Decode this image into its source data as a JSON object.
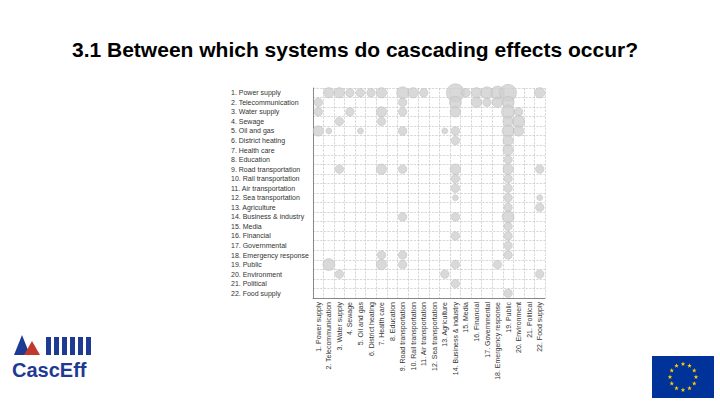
{
  "logo_text": "CascEff",
  "chart_data": {
    "type": "scatter",
    "title": "3.1  Between which systems do cascading effects occur?",
    "x_categories": [
      "1. Power supply",
      "2. Telecommunication",
      "3. Water supply",
      "4. Sewage",
      "5. Oil and gas",
      "6. District heating",
      "7. Health care",
      "8. Education",
      "9. Road transportation",
      "10. Rail transportation",
      "11. Air transportation",
      "12. Sea transportation",
      "13. Agriculture",
      "14. Business & industry",
      "15. Media",
      "16. Financial",
      "17. Governmental",
      "18. Emergency response",
      "19. Public",
      "20. Environment",
      "21. Political",
      "22. Food supply"
    ],
    "y_categories": [
      "1. Power supply",
      "2. Telecommunication",
      "3. Water supply",
      "4. Sewage",
      "5. Oil and gas",
      "6. District heating",
      "7. Health care",
      "8. Education",
      "9. Road transportation",
      "10. Rail transportation",
      "11. Air transportation",
      "12. Sea transportation",
      "13. Agriculture",
      "14. Business & industry",
      "15. Media",
      "16. Financial",
      "17. Governmental",
      "18. Emergency response",
      "19. Public",
      "20. Environment",
      "21. Political",
      "22. Food supply"
    ],
    "points": [
      {
        "y": "1. Power supply",
        "x": "2. Telecommunication",
        "size": 3
      },
      {
        "y": "1. Power supply",
        "x": "3. Water supply",
        "size": 3
      },
      {
        "y": "1. Power supply",
        "x": "4. Sewage",
        "size": 2
      },
      {
        "y": "1. Power supply",
        "x": "5. Oil and gas",
        "size": 2
      },
      {
        "y": "1. Power supply",
        "x": "6. District heating",
        "size": 2
      },
      {
        "y": "1. Power supply",
        "x": "7. Health care",
        "size": 3
      },
      {
        "y": "1. Power supply",
        "x": "9. Road transportation",
        "size": 4
      },
      {
        "y": "1. Power supply",
        "x": "10. Rail transportation",
        "size": 3
      },
      {
        "y": "1. Power supply",
        "x": "11. Air transportation",
        "size": 2
      },
      {
        "y": "1. Power supply",
        "x": "14. Business & industry",
        "size": 9
      },
      {
        "y": "1. Power supply",
        "x": "15. Media",
        "size": 2
      },
      {
        "y": "1. Power supply",
        "x": "16. Financial",
        "size": 3
      },
      {
        "y": "1. Power supply",
        "x": "17. Governmental",
        "size": 4
      },
      {
        "y": "1. Power supply",
        "x": "18. Emergency response",
        "size": 5
      },
      {
        "y": "1. Power supply",
        "x": "19. Public",
        "size": 8
      },
      {
        "y": "1. Power supply",
        "x": "22. Food supply",
        "size": 3
      },
      {
        "y": "2. Telecommunication",
        "x": "1. Power supply",
        "size": 2
      },
      {
        "y": "2. Telecommunication",
        "x": "9. Road transportation",
        "size": 2
      },
      {
        "y": "2. Telecommunication",
        "x": "14. Business & industry",
        "size": 4
      },
      {
        "y": "2. Telecommunication",
        "x": "16. Financial",
        "size": 3
      },
      {
        "y": "2. Telecommunication",
        "x": "17. Governmental",
        "size": 2
      },
      {
        "y": "2. Telecommunication",
        "x": "18. Emergency response",
        "size": 3
      },
      {
        "y": "2. Telecommunication",
        "x": "19. Public",
        "size": 4
      },
      {
        "y": "3. Water supply",
        "x": "1. Power supply",
        "size": 2
      },
      {
        "y": "3. Water supply",
        "x": "4. Sewage",
        "size": 2
      },
      {
        "y": "3. Water supply",
        "x": "7. Health care",
        "size": 3
      },
      {
        "y": "3. Water supply",
        "x": "9. Road transportation",
        "size": 2
      },
      {
        "y": "3. Water supply",
        "x": "14. Business & industry",
        "size": 3
      },
      {
        "y": "3. Water supply",
        "x": "19. Public",
        "size": 5
      },
      {
        "y": "3. Water supply",
        "x": "20. Environment",
        "size": 2
      },
      {
        "y": "4. Sewage",
        "x": "3. Water supply",
        "size": 2
      },
      {
        "y": "4. Sewage",
        "x": "7. Health care",
        "size": 2
      },
      {
        "y": "4. Sewage",
        "x": "19. Public",
        "size": 3
      },
      {
        "y": "4. Sewage",
        "x": "20. Environment",
        "size": 4
      },
      {
        "y": "5. Oil and gas",
        "x": "1. Power supply",
        "size": 3
      },
      {
        "y": "5. Oil and gas",
        "x": "2. Telecommunication",
        "size": 1
      },
      {
        "y": "5. Oil and gas",
        "x": "5. Oil and gas",
        "size": 1
      },
      {
        "y": "5. Oil and gas",
        "x": "9. Road transportation",
        "size": 2
      },
      {
        "y": "5. Oil and gas",
        "x": "13. Agriculture",
        "size": 1
      },
      {
        "y": "5. Oil and gas",
        "x": "14. Business & industry",
        "size": 2
      },
      {
        "y": "5. Oil and gas",
        "x": "19. Public",
        "size": 4
      },
      {
        "y": "5. Oil and gas",
        "x": "20. Environment",
        "size": 3
      },
      {
        "y": "6. District heating",
        "x": "14. Business & industry",
        "size": 2
      },
      {
        "y": "6. District heating",
        "x": "19. Public",
        "size": 3
      },
      {
        "y": "7. Health care",
        "x": "19. Public",
        "size": 3
      },
      {
        "y": "8. Education",
        "x": "19. Public",
        "size": 2
      },
      {
        "y": "9. Road transportation",
        "x": "3. Water supply",
        "size": 2
      },
      {
        "y": "9. Road transportation",
        "x": "7. Health care",
        "size": 3
      },
      {
        "y": "9. Road transportation",
        "x": "9. Road transportation",
        "size": 2
      },
      {
        "y": "9. Road transportation",
        "x": "14. Business & industry",
        "size": 3
      },
      {
        "y": "9. Road transportation",
        "x": "19. Public",
        "size": 3
      },
      {
        "y": "9. Road transportation",
        "x": "22. Food supply",
        "size": 2
      },
      {
        "y": "10. Rail transportation",
        "x": "14. Business & industry",
        "size": 2
      },
      {
        "y": "10. Rail transportation",
        "x": "19. Public",
        "size": 2
      },
      {
        "y": "11. Air transportation",
        "x": "14. Business & industry",
        "size": 2
      },
      {
        "y": "11. Air transportation",
        "x": "19. Public",
        "size": 2
      },
      {
        "y": "12. Sea transportation",
        "x": "14. Business & industry",
        "size": 1
      },
      {
        "y": "12. Sea transportation",
        "x": "19. Public",
        "size": 2
      },
      {
        "y": "12. Sea transportation",
        "x": "22. Food supply",
        "size": 1
      },
      {
        "y": "13. Agriculture",
        "x": "19. Public",
        "size": 2
      },
      {
        "y": "13. Agriculture",
        "x": "22. Food supply",
        "size": 2
      },
      {
        "y": "14. Business & industry",
        "x": "9. Road transportation",
        "size": 2
      },
      {
        "y": "14. Business & industry",
        "x": "14. Business & industry",
        "size": 2
      },
      {
        "y": "14. Business & industry",
        "x": "19. Public",
        "size": 4
      },
      {
        "y": "15. Media",
        "x": "19. Public",
        "size": 2
      },
      {
        "y": "16. Financial",
        "x": "14. Business & industry",
        "size": 2
      },
      {
        "y": "16. Financial",
        "x": "19. Public",
        "size": 2
      },
      {
        "y": "17. Governmental",
        "x": "19. Public",
        "size": 2
      },
      {
        "y": "18. Emergency response",
        "x": "7. Health care",
        "size": 2
      },
      {
        "y": "18. Emergency response",
        "x": "9. Road transportation",
        "size": 2
      },
      {
        "y": "18. Emergency response",
        "x": "19. Public",
        "size": 2
      },
      {
        "y": "19. Public",
        "x": "2. Telecommunication",
        "size": 4
      },
      {
        "y": "19. Public",
        "x": "7. Health care",
        "size": 3
      },
      {
        "y": "19. Public",
        "x": "9. Road transportation",
        "size": 2
      },
      {
        "y": "19. Public",
        "x": "14. Business & industry",
        "size": 2
      },
      {
        "y": "19. Public",
        "x": "18. Emergency response",
        "size": 2
      },
      {
        "y": "20. Environment",
        "x": "3. Water supply",
        "size": 2
      },
      {
        "y": "20. Environment",
        "x": "13. Agriculture",
        "size": 2
      },
      {
        "y": "20. Environment",
        "x": "22. Food supply",
        "size": 2
      },
      {
        "y": "21. Political",
        "x": "14. Business & industry",
        "size": 2
      },
      {
        "y": "22. Food supply",
        "x": "19. Public",
        "size": 2
      }
    ],
    "color": "#cfcfcf",
    "marker": "circle",
    "grid": true
  }
}
